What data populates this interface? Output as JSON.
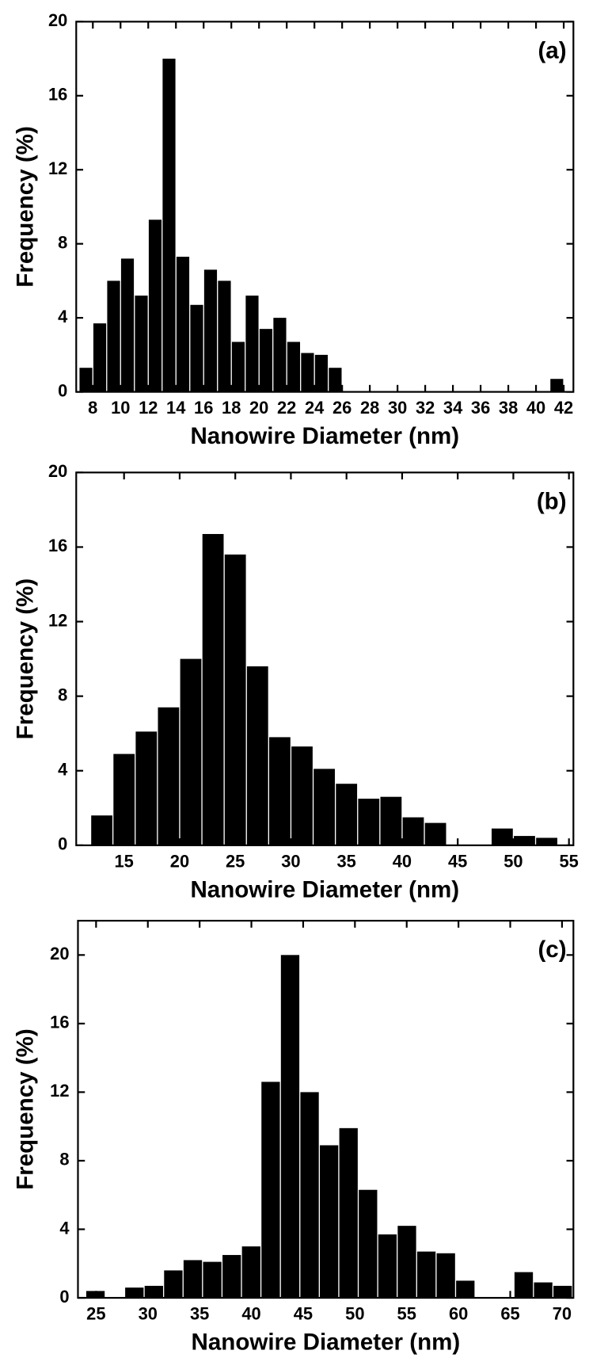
{
  "chart_data": [
    {
      "type": "histogram",
      "annotation": "(a)",
      "x_label": "Nanowire Diameter (nm)",
      "y_label": "Frequency (%)",
      "color": "#000000",
      "bins": [
        7,
        8,
        9,
        10,
        11,
        12,
        13,
        14,
        15,
        16,
        17,
        18,
        19,
        20,
        21,
        22,
        23,
        24,
        25,
        26,
        27,
        28,
        29,
        30,
        31,
        32,
        33,
        34,
        35,
        36,
        37,
        38,
        39,
        40,
        41,
        42
      ],
      "values": [
        1.3,
        3.7,
        6.0,
        7.2,
        5.2,
        9.3,
        18.0,
        7.3,
        4.7,
        6.6,
        6.0,
        2.7,
        5.2,
        3.4,
        4.0,
        2.7,
        2.1,
        2.0,
        1.3,
        0,
        0,
        0,
        0,
        0,
        0,
        0,
        0,
        0,
        0,
        0,
        0,
        0,
        0,
        0,
        0.7
      ],
      "xlim": [
        6.8,
        42.7
      ],
      "ylim": [
        0,
        20
      ],
      "xticks": [
        8,
        10,
        12,
        14,
        16,
        18,
        20,
        22,
        24,
        26,
        28,
        30,
        32,
        34,
        36,
        38,
        40,
        42
      ],
      "yticks": [
        0,
        4,
        8,
        12,
        16,
        20
      ]
    },
    {
      "type": "histogram",
      "annotation": "(b)",
      "x_label": "Nanowire Diameter (nm)",
      "y_label": "Frequency (%)",
      "color": "#000000",
      "bins": [
        12,
        14,
        16,
        18,
        20,
        22,
        24,
        26,
        28,
        30,
        32,
        34,
        36,
        38,
        40,
        42,
        44,
        46,
        48,
        50,
        52,
        54
      ],
      "values": [
        1.6,
        4.9,
        6.1,
        7.4,
        10.0,
        16.7,
        15.6,
        9.6,
        5.8,
        5.3,
        4.1,
        3.3,
        2.5,
        2.6,
        1.5,
        1.2,
        0,
        0,
        0.9,
        0.5,
        0.4
      ],
      "xlim": [
        10.7,
        55.4
      ],
      "ylim": [
        0,
        20
      ],
      "xticks": [
        15,
        20,
        25,
        30,
        35,
        40,
        45,
        50,
        55
      ],
      "yticks": [
        0,
        4,
        8,
        12,
        16,
        20
      ]
    },
    {
      "type": "histogram",
      "annotation": "(c)",
      "x_label": "Nanowire Diameter (nm)",
      "y_label": "Frequency (%)",
      "color": "#000000",
      "bins": [
        24,
        25.88,
        27.76,
        29.64,
        31.52,
        33.4,
        35.28,
        37.16,
        39.04,
        40.92,
        42.8,
        44.68,
        46.56,
        48.44,
        50.32,
        52.2,
        54.08,
        55.96,
        57.84,
        59.72,
        61.6,
        63.48,
        65.36,
        67.24,
        69.12,
        71
      ],
      "values": [
        0.4,
        0,
        0.6,
        0.7,
        1.6,
        2.2,
        2.1,
        2.5,
        3.0,
        12.6,
        20.0,
        12.0,
        8.9,
        9.9,
        6.3,
        3.7,
        4.2,
        2.7,
        2.6,
        1.0,
        0,
        0,
        1.5,
        0.9,
        0.7
      ],
      "xlim": [
        23.25,
        71.1
      ],
      "ylim": [
        0,
        22
      ],
      "xticks": [
        25,
        30,
        35,
        40,
        45,
        50,
        55,
        60,
        65,
        70
      ],
      "yticks": [
        0,
        4,
        8,
        12,
        16,
        20
      ]
    }
  ]
}
